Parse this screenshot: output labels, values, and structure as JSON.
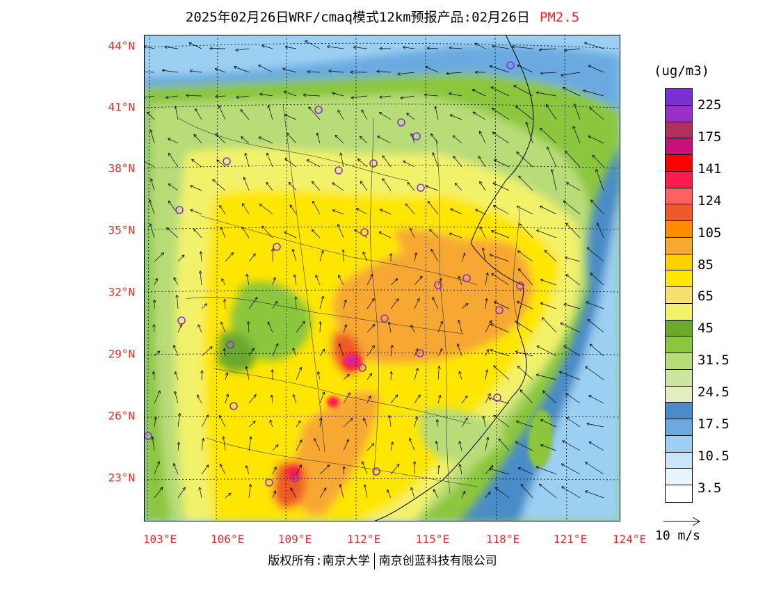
{
  "title": {
    "main": "2025年02月26日WRF/cmaq模式12km预报产品:02月26日",
    "pollutant": "PM2.5",
    "pollutant_color": "#ff2020"
  },
  "axes": {
    "latitude_labels": [
      "44°N",
      "41°N",
      "38°N",
      "35°N",
      "32°N",
      "29°N",
      "26°N",
      "23°N"
    ],
    "longitude_labels": [
      "103°E",
      "106°E",
      "109°E",
      "112°E",
      "115°E",
      "118°E",
      "121°E",
      "124°E"
    ],
    "label_color": "#e0302a"
  },
  "legend": {
    "unit": "(ug/m3)",
    "labels": [
      "225",
      "175",
      "141",
      "124",
      "105",
      "85",
      "65",
      "45",
      "31.5",
      "24.5",
      "17.5",
      "10.5",
      "3.5"
    ],
    "colors_top_to_bottom": [
      "#7b2fd1",
      "#9b30c8",
      "#b03060",
      "#c8107a",
      "#ff0000",
      "#ff1a50",
      "#ff6060",
      "#f05a28",
      "#ff8c00",
      "#f7a830",
      "#fdd000",
      "#ffe600",
      "#f5e070",
      "#f2f26a",
      "#6aa82e",
      "#8cc63e",
      "#b8dc78",
      "#cce6a0",
      "#e2eec2",
      "#4a8cc8",
      "#6aaae0",
      "#9cd0f2",
      "#c8e6f8",
      "#e8f4fc",
      "#ffffff"
    ]
  },
  "reference_vector": {
    "label": "10 m/s"
  },
  "copyright": {
    "left": "版权所有:南京大学",
    "right": "南京创蓝科技有限公司"
  }
}
